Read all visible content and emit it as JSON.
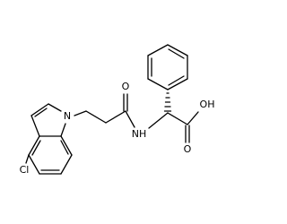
{
  "atoms": [
    {
      "label": "Cl"
    },
    {
      "label": "N"
    },
    {
      "label": "O"
    },
    {
      "label": "NH"
    },
    {
      "label": "O"
    },
    {
      "label": "OH"
    }
  ]
}
